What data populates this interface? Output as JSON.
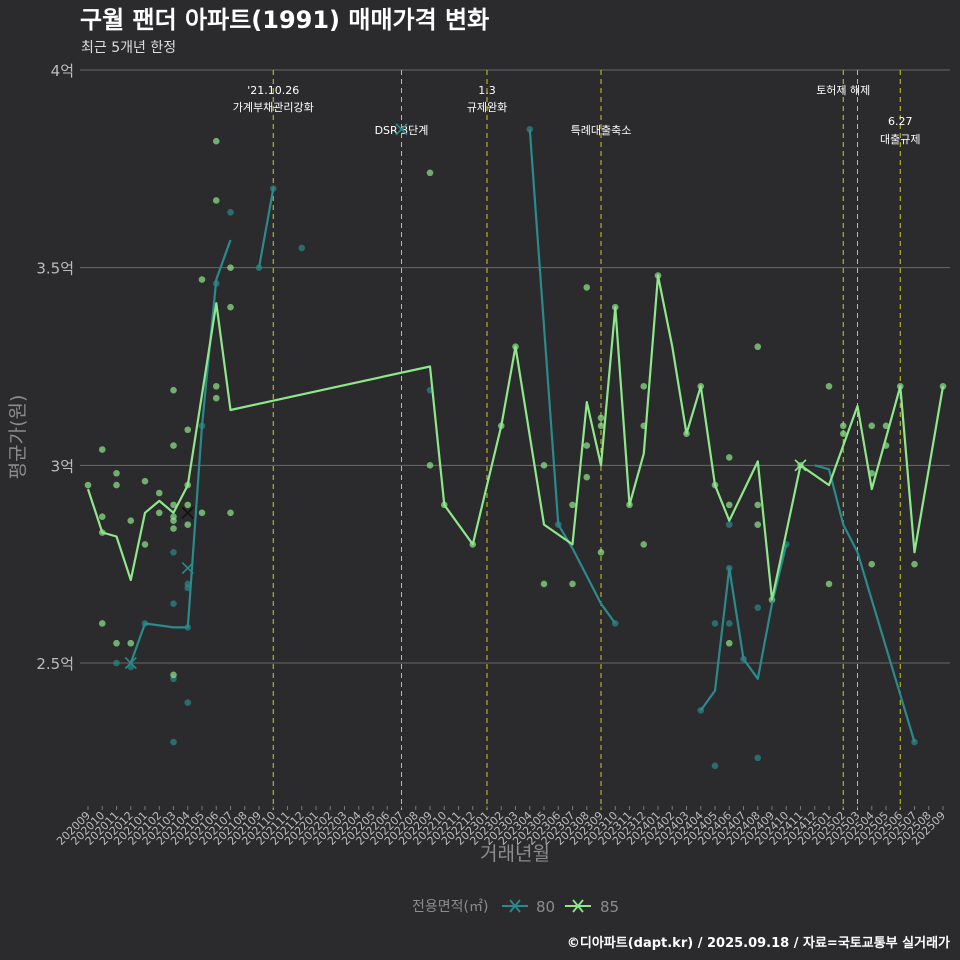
{
  "title": "구월 팬더 아파트(1991) 매매가격 변화",
  "subtitle": "최근 5개년 한정",
  "footer": "©디아파트(dapt.kr) / 2025.09.18 / 자료=국토교통부 실거래가",
  "colors": {
    "s80": "#2a8a8c",
    "s85": "#8ee88a",
    "event": "#cccc22",
    "bg": "#2b2b2d",
    "grid": "#6a6a6a"
  },
  "chart_data": {
    "type": "line",
    "title": "구월 팬더 아파트(1991) 매매가격 변화",
    "xlabel": "거래년월",
    "ylabel": "평균가(원)",
    "ylim": [
      2.1,
      4.0
    ],
    "y_ticks": [
      {
        "value": 2.5,
        "label": "2.5억"
      },
      {
        "value": 3.0,
        "label": "3억"
      },
      {
        "value": 3.5,
        "label": "3.5억"
      },
      {
        "value": 4.0,
        "label": "4억"
      }
    ],
    "categories": [
      "202009",
      "202010",
      "202011",
      "202012",
      "202101",
      "202102",
      "202103",
      "202104",
      "202105",
      "202106",
      "202107",
      "202108",
      "202109",
      "202110",
      "202111",
      "202112",
      "202201",
      "202202",
      "202203",
      "202204",
      "202205",
      "202206",
      "202207",
      "202208",
      "202209",
      "202210",
      "202211",
      "202212",
      "202301",
      "202302",
      "202303",
      "202304",
      "202305",
      "202306",
      "202307",
      "202308",
      "202309",
      "202310",
      "202311",
      "202312",
      "202401",
      "202402",
      "202403",
      "202404",
      "202405",
      "202406",
      "202407",
      "202408",
      "202409",
      "202410",
      "202411",
      "202412",
      "202501",
      "202502",
      "202503",
      "202504",
      "202505",
      "202506",
      "202507",
      "202508",
      "202509"
    ],
    "legend": {
      "title": "전용면적(㎡)",
      "items": [
        "80",
        "85"
      ]
    },
    "events": [
      {
        "x": 13,
        "label": [
          "'21.10.26",
          "가계부채관리강화"
        ],
        "row": 0
      },
      {
        "x": 22,
        "label": [
          "DSR 3단계"
        ],
        "row": 1
      },
      {
        "x": 28,
        "label": [
          "1.3",
          "규제완화"
        ],
        "row": 0
      },
      {
        "x": 36,
        "label": [
          "특례대출축소"
        ],
        "row": 1
      },
      {
        "x": 53,
        "label": [
          "토허제 해제"
        ],
        "row": 0
      },
      {
        "x": 54,
        "label": [],
        "row": 0
      },
      {
        "x": 57,
        "label": [
          "6.27",
          "대출규제"
        ],
        "row": 2
      }
    ],
    "series": [
      {
        "name": "80",
        "lines": [
          [
            [
              3,
              2.5
            ],
            [
              4,
              2.6
            ],
            [
              5,
              2.595
            ],
            [
              6,
              2.59
            ],
            [
              7,
              2.59
            ],
            [
              8,
              3.1
            ],
            [
              9,
              3.47
            ],
            [
              10,
              3.57
            ]
          ],
          [
            [
              12,
              3.5
            ],
            [
              13,
              3.7
            ]
          ],
          [
            [
              31,
              3.85
            ],
            [
              33,
              2.85
            ],
            [
              34,
              2.79
            ],
            [
              35,
              2.72
            ],
            [
              36,
              2.65
            ],
            [
              37,
              2.6
            ]
          ],
          [
            [
              43,
              2.38
            ],
            [
              44,
              2.43
            ],
            [
              45,
              2.74
            ],
            [
              46,
              2.51
            ],
            [
              47,
              2.46
            ],
            [
              48,
              2.65
            ],
            [
              49,
              2.8
            ]
          ],
          [
            [
              51,
              3.0
            ],
            [
              52,
              2.99
            ],
            [
              53,
              2.85
            ],
            [
              54,
              2.78
            ],
            [
              58,
              2.3
            ]
          ]
        ],
        "points": [
          [
            2,
            2.5
          ],
          [
            3,
            2.49
          ],
          [
            4,
            2.6
          ],
          [
            6,
            2.78
          ],
          [
            6,
            2.46
          ],
          [
            6,
            2.3
          ],
          [
            6,
            2.65
          ],
          [
            7,
            2.69
          ],
          [
            7,
            2.7
          ],
          [
            7,
            2.4
          ],
          [
            7,
            2.59
          ],
          [
            8,
            3.1
          ],
          [
            9,
            3.46
          ],
          [
            10,
            3.64
          ],
          [
            12,
            3.5
          ],
          [
            13,
            3.7
          ],
          [
            15,
            3.55
          ],
          [
            24,
            3.19
          ],
          [
            31,
            3.85
          ],
          [
            33,
            2.85
          ],
          [
            37,
            2.6
          ],
          [
            43,
            2.38
          ],
          [
            44,
            2.24
          ],
          [
            44,
            2.6
          ],
          [
            45,
            2.74
          ],
          [
            45,
            2.6
          ],
          [
            45,
            2.85
          ],
          [
            46,
            2.51
          ],
          [
            47,
            2.26
          ],
          [
            47,
            2.64
          ],
          [
            49,
            2.8
          ],
          [
            58,
            2.3
          ]
        ],
        "x_markers": [
          [
            3,
            2.5
          ],
          [
            7,
            2.74
          ],
          [
            22,
            3.85
          ]
        ]
      },
      {
        "name": "85",
        "lines": [
          [
            [
              0,
              2.94
            ],
            [
              1,
              2.83
            ],
            [
              2,
              2.82
            ],
            [
              3,
              2.71
            ],
            [
              4,
              2.88
            ],
            [
              5,
              2.91
            ],
            [
              6,
              2.88
            ],
            [
              7,
              2.95
            ],
            [
              9,
              3.41
            ],
            [
              10,
              3.14
            ],
            [
              24,
              3.25
            ],
            [
              25,
              2.9
            ],
            [
              27,
              2.8
            ],
            [
              29,
              3.1
            ],
            [
              30,
              3.3
            ],
            [
              32,
              2.85
            ],
            [
              34,
              2.8
            ],
            [
              35,
              3.16
            ],
            [
              36,
              3.0
            ],
            [
              37,
              3.4
            ],
            [
              38,
              2.9
            ],
            [
              39,
              3.03
            ],
            [
              40,
              3.48
            ],
            [
              41,
              3.3
            ],
            [
              42,
              3.08
            ],
            [
              43,
              3.2
            ],
            [
              44,
              2.95
            ],
            [
              45,
              2.86
            ],
            [
              47,
              3.01
            ],
            [
              48,
              2.66
            ],
            [
              50,
              3.0
            ],
            [
              52,
              2.95
            ],
            [
              54,
              3.15
            ],
            [
              55,
              2.94
            ],
            [
              57,
              3.2
            ],
            [
              58,
              2.78
            ],
            [
              60,
              3.2
            ]
          ]
        ],
        "points": [
          [
            0,
            2.95
          ],
          [
            1,
            3.04
          ],
          [
            1,
            2.87
          ],
          [
            1,
            2.6
          ],
          [
            1,
            2.83
          ],
          [
            2,
            2.98
          ],
          [
            2,
            2.95
          ],
          [
            2,
            2.55
          ],
          [
            3,
            2.86
          ],
          [
            3,
            2.55
          ],
          [
            4,
            2.96
          ],
          [
            4,
            2.8
          ],
          [
            5,
            2.88
          ],
          [
            5,
            2.93
          ],
          [
            6,
            3.19
          ],
          [
            6,
            3.05
          ],
          [
            6,
            2.9
          ],
          [
            6,
            2.87
          ],
          [
            6,
            2.86
          ],
          [
            6,
            2.84
          ],
          [
            6,
            2.47
          ],
          [
            7,
            3.09
          ],
          [
            7,
            2.95
          ],
          [
            7,
            2.9
          ],
          [
            7,
            2.85
          ],
          [
            8,
            3.47
          ],
          [
            8,
            2.88
          ],
          [
            9,
            3.82
          ],
          [
            9,
            3.67
          ],
          [
            9,
            3.2
          ],
          [
            9,
            3.17
          ],
          [
            10,
            3.4
          ],
          [
            10,
            2.88
          ],
          [
            10,
            3.5
          ],
          [
            24,
            3.74
          ],
          [
            24,
            3.0
          ],
          [
            25,
            2.9
          ],
          [
            27,
            2.8
          ],
          [
            29,
            3.1
          ],
          [
            30,
            3.3
          ],
          [
            32,
            2.7
          ],
          [
            32,
            3.0
          ],
          [
            34,
            2.7
          ],
          [
            34,
            2.9
          ],
          [
            35,
            3.45
          ],
          [
            35,
            3.05
          ],
          [
            35,
            2.97
          ],
          [
            36,
            3.12
          ],
          [
            36,
            3.1
          ],
          [
            36,
            2.78
          ],
          [
            37,
            3.4
          ],
          [
            38,
            2.9
          ],
          [
            39,
            3.2
          ],
          [
            39,
            3.1
          ],
          [
            39,
            2.8
          ],
          [
            40,
            3.48
          ],
          [
            42,
            3.08
          ],
          [
            43,
            3.2
          ],
          [
            44,
            2.95
          ],
          [
            45,
            3.02
          ],
          [
            45,
            2.9
          ],
          [
            45,
            2.55
          ],
          [
            47,
            2.9
          ],
          [
            47,
            2.85
          ],
          [
            47,
            3.3
          ],
          [
            48,
            2.66
          ],
          [
            50,
            3.0
          ],
          [
            52,
            3.2
          ],
          [
            52,
            2.7
          ],
          [
            53,
            3.1
          ],
          [
            53,
            3.08
          ],
          [
            55,
            3.1
          ],
          [
            55,
            2.98
          ],
          [
            55,
            2.75
          ],
          [
            56,
            3.1
          ],
          [
            56,
            3.05
          ],
          [
            57,
            3.2
          ],
          [
            58,
            2.75
          ],
          [
            60,
            3.2
          ]
        ],
        "x_markers": [
          [
            7,
            2.88
          ],
          [
            50,
            3.0
          ]
        ]
      }
    ]
  }
}
